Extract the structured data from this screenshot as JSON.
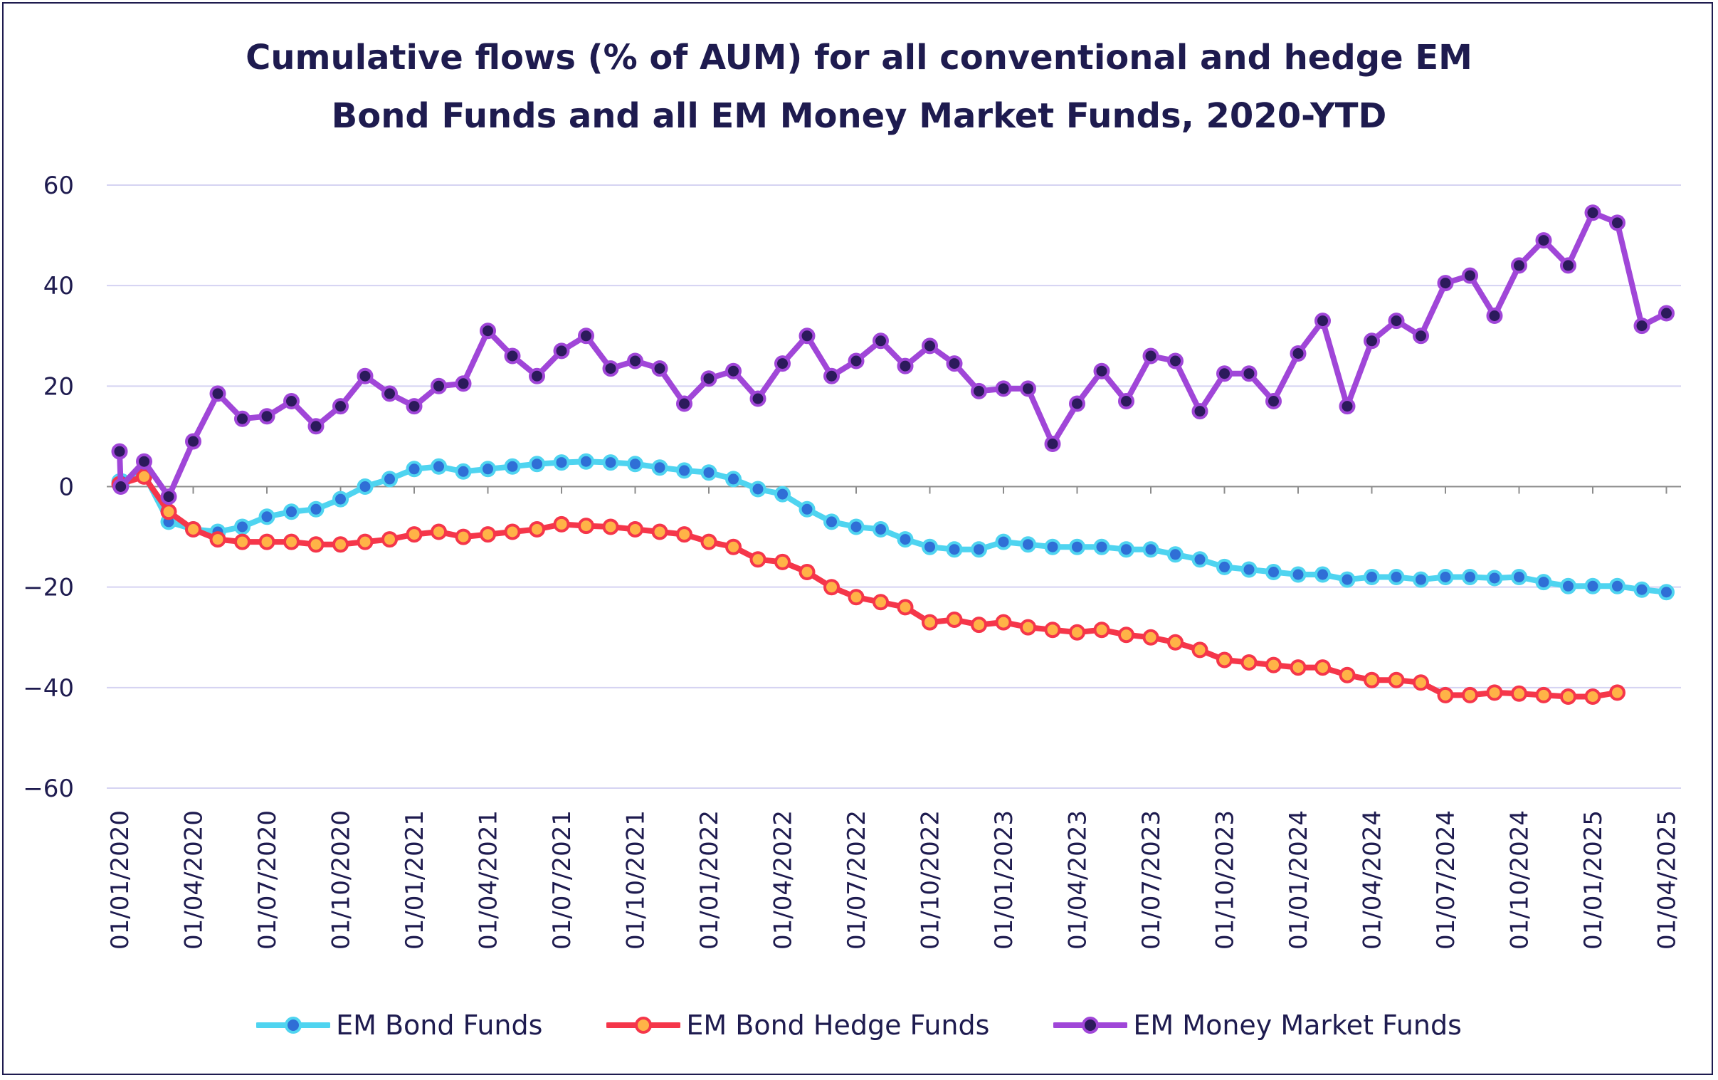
{
  "chart_data": {
    "type": "line",
    "title": [
      "Cumulative flows (% of AUM) for all conventional and hedge EM",
      "Bond Funds and all EM Money Market Funds, 2020-YTD"
    ],
    "xlabel": "",
    "ylabel": "",
    "ylim": [
      -60,
      60
    ],
    "yticks": [
      60,
      40,
      20,
      0,
      -20,
      -40,
      -60
    ],
    "x_start_month": "2020-01",
    "x_ticks": [
      "01/01/2020",
      "01/04/2020",
      "01/07/2020",
      "01/10/2020",
      "01/01/2021",
      "01/04/2021",
      "01/07/2021",
      "01/10/2021",
      "01/01/2022",
      "01/04/2022",
      "01/07/2022",
      "01/10/2022",
      "01/01/2023",
      "01/04/2023",
      "01/07/2023",
      "01/10/2023",
      "01/01/2024",
      "01/04/2024",
      "01/07/2024",
      "01/10/2024",
      "01/01/2025",
      "01/04/2025"
    ],
    "grid": true,
    "legend_position": "bottom",
    "series": [
      {
        "name": "EM Bond Funds",
        "color": "#4fd4f0",
        "marker_color": "#2f6fd6",
        "points": [
          [
            0,
            1.0
          ],
          [
            0.1,
            1.0
          ],
          [
            1,
            2.5
          ],
          [
            2,
            -7
          ],
          [
            3,
            -8.5
          ],
          [
            4,
            -9
          ],
          [
            5,
            -8
          ],
          [
            6,
            -6
          ],
          [
            7,
            -5
          ],
          [
            8,
            -4.5
          ],
          [
            9,
            -2.5
          ],
          [
            10,
            0
          ],
          [
            11,
            1.5
          ],
          [
            12,
            3.5
          ],
          [
            13,
            4
          ],
          [
            14,
            3
          ],
          [
            15,
            3.5
          ],
          [
            16,
            4
          ],
          [
            17,
            4.5
          ],
          [
            18,
            4.8
          ],
          [
            19,
            5
          ],
          [
            20,
            4.8
          ],
          [
            21,
            4.5
          ],
          [
            22,
            3.8
          ],
          [
            23,
            3.2
          ],
          [
            24,
            2.8
          ],
          [
            25,
            1.5
          ],
          [
            26,
            -0.5
          ],
          [
            27,
            -1.5
          ],
          [
            28,
            -4.5
          ],
          [
            29,
            -7
          ],
          [
            30,
            -8
          ],
          [
            31,
            -8.5
          ],
          [
            32,
            -10.5
          ],
          [
            33,
            -12
          ],
          [
            34,
            -12.5
          ],
          [
            35,
            -12.5
          ],
          [
            36,
            -11
          ],
          [
            37,
            -11.5
          ],
          [
            38,
            -12
          ],
          [
            39,
            -12
          ],
          [
            40,
            -12
          ],
          [
            41,
            -12.5
          ],
          [
            42,
            -12.5
          ],
          [
            43,
            -13.5
          ],
          [
            44,
            -14.5
          ],
          [
            45,
            -16
          ],
          [
            46,
            -16.5
          ],
          [
            47,
            -17
          ],
          [
            48,
            -17.5
          ],
          [
            49,
            -17.5
          ],
          [
            50,
            -18.5
          ],
          [
            51,
            -18
          ],
          [
            52,
            -18
          ],
          [
            53,
            -18.5
          ],
          [
            54,
            -18
          ],
          [
            55,
            -18
          ],
          [
            56,
            -18.2
          ],
          [
            57,
            -18
          ],
          [
            58,
            -19
          ],
          [
            59,
            -19.8
          ],
          [
            60,
            -19.8
          ],
          [
            61,
            -19.8
          ],
          [
            62,
            -20.5
          ],
          [
            63,
            -21
          ]
        ]
      },
      {
        "name": "EM Bond Hedge Funds",
        "color": "#f5364a",
        "marker_color": "#ffb347",
        "points": [
          [
            0,
            0.5
          ],
          [
            1,
            2
          ],
          [
            2,
            -5
          ],
          [
            3,
            -8.5
          ],
          [
            4,
            -10.5
          ],
          [
            5,
            -11
          ],
          [
            6,
            -11
          ],
          [
            7,
            -11
          ],
          [
            8,
            -11.5
          ],
          [
            9,
            -11.5
          ],
          [
            10,
            -11
          ],
          [
            11,
            -10.5
          ],
          [
            12,
            -9.5
          ],
          [
            13,
            -9
          ],
          [
            14,
            -10
          ],
          [
            15,
            -9.5
          ],
          [
            16,
            -9
          ],
          [
            17,
            -8.5
          ],
          [
            18,
            -7.5
          ],
          [
            19,
            -7.8
          ],
          [
            20,
            -8
          ],
          [
            21,
            -8.5
          ],
          [
            22,
            -9
          ],
          [
            23,
            -9.5
          ],
          [
            24,
            -11
          ],
          [
            25,
            -12
          ],
          [
            26,
            -14.5
          ],
          [
            27,
            -15
          ],
          [
            28,
            -17
          ],
          [
            29,
            -20
          ],
          [
            30,
            -22
          ],
          [
            31,
            -23
          ],
          [
            32,
            -24
          ],
          [
            33,
            -27
          ],
          [
            34,
            -26.5
          ],
          [
            35,
            -27.5
          ],
          [
            36,
            -27
          ],
          [
            37,
            -28
          ],
          [
            38,
            -28.5
          ],
          [
            39,
            -29
          ],
          [
            40,
            -28.5
          ],
          [
            41,
            -29.5
          ],
          [
            42,
            -30
          ],
          [
            43,
            -31
          ],
          [
            44,
            -32.5
          ],
          [
            45,
            -34.5
          ],
          [
            46,
            -35
          ],
          [
            47,
            -35.5
          ],
          [
            48,
            -36
          ],
          [
            49,
            -36
          ],
          [
            50,
            -37.5
          ],
          [
            51,
            -38.5
          ],
          [
            52,
            -38.5
          ],
          [
            53,
            -39
          ],
          [
            54,
            -41.5
          ],
          [
            55,
            -41.5
          ],
          [
            56,
            -41
          ],
          [
            57,
            -41.2
          ],
          [
            58,
            -41.5
          ],
          [
            59,
            -41.8
          ],
          [
            60,
            -41.8
          ],
          [
            61,
            -41
          ]
        ]
      },
      {
        "name": "EM Money Market Funds",
        "color": "#a046d8",
        "marker_color": "#2c1a5c",
        "points": [
          [
            0,
            7
          ],
          [
            0.05,
            0
          ],
          [
            1,
            5
          ],
          [
            2,
            -2
          ],
          [
            3,
            9
          ],
          [
            4,
            18.5
          ],
          [
            5,
            13.5
          ],
          [
            6,
            14
          ],
          [
            7,
            17
          ],
          [
            8,
            12
          ],
          [
            9,
            16
          ],
          [
            10,
            22
          ],
          [
            11,
            18.5
          ],
          [
            12,
            16
          ],
          [
            13,
            20
          ],
          [
            14,
            20.5
          ],
          [
            15,
            31
          ],
          [
            16,
            26
          ],
          [
            17,
            22
          ],
          [
            18,
            27
          ],
          [
            19,
            30
          ],
          [
            20,
            23.5
          ],
          [
            21,
            25
          ],
          [
            22,
            23.5
          ],
          [
            23,
            16.5
          ],
          [
            24,
            21.5
          ],
          [
            25,
            23
          ],
          [
            26,
            17.5
          ],
          [
            27,
            24.5
          ],
          [
            28,
            30
          ],
          [
            29,
            22
          ],
          [
            30,
            25
          ],
          [
            31,
            29
          ],
          [
            32,
            24
          ],
          [
            33,
            28
          ],
          [
            34,
            24.5
          ],
          [
            35,
            19
          ],
          [
            36,
            19.5
          ],
          [
            37,
            19.5
          ],
          [
            38,
            8.5
          ],
          [
            39,
            16.5
          ],
          [
            40,
            23
          ],
          [
            41,
            17
          ],
          [
            42,
            26
          ],
          [
            43,
            25
          ],
          [
            44,
            15
          ],
          [
            45,
            22.5
          ],
          [
            46,
            22.5
          ],
          [
            47,
            17
          ],
          [
            48,
            26.5
          ],
          [
            49,
            33
          ],
          [
            50,
            16
          ],
          [
            51,
            29
          ],
          [
            52,
            33
          ],
          [
            53,
            30
          ],
          [
            54,
            40.5
          ],
          [
            55,
            42
          ],
          [
            56,
            34
          ],
          [
            57,
            44
          ],
          [
            58,
            49
          ],
          [
            59,
            44
          ],
          [
            60,
            54.5
          ],
          [
            61,
            52.5
          ],
          [
            62,
            32
          ],
          [
            63,
            34.5
          ]
        ]
      }
    ]
  }
}
